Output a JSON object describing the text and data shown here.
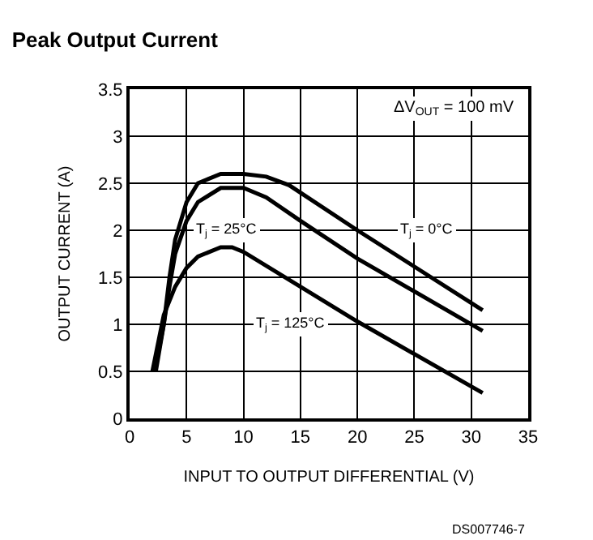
{
  "chart_data": {
    "type": "line",
    "title": "Peak Output Current",
    "xlabel": "INPUT TO OUTPUT DIFFERENTIAL (V)",
    "ylabel": "OUTPUT CURRENT (A)",
    "xlim": [
      0,
      35
    ],
    "ylim": [
      0,
      3.5
    ],
    "xticks": [
      0,
      5,
      10,
      15,
      20,
      25,
      30,
      35
    ],
    "yticks": [
      0,
      0.5,
      1,
      1.5,
      2,
      2.5,
      3,
      3.5
    ],
    "grid": true,
    "legend": false,
    "marker": "none",
    "line_style": "solid",
    "annotations": [
      "ΔV$_{OUT}$ = 100 mV",
      "DS007746-7"
    ],
    "series": [
      {
        "name": "T$_{j}$ = 0°C",
        "color": "#000000",
        "x": [
          2.2,
          3,
          3.5,
          4,
          5,
          6,
          8,
          10,
          12,
          14,
          20,
          31
        ],
        "values": [
          0.5,
          1.0,
          1.5,
          1.9,
          2.3,
          2.5,
          2.6,
          2.6,
          2.57,
          2.48,
          2.0,
          1.15
        ]
      },
      {
        "name": "T$_{j}$ = 25°C",
        "color": "#000000",
        "x": [
          2.3,
          3,
          3.5,
          4,
          5,
          6,
          8,
          10,
          12,
          15,
          20,
          31
        ],
        "values": [
          0.5,
          1.0,
          1.4,
          1.75,
          2.1,
          2.3,
          2.45,
          2.45,
          2.35,
          2.1,
          1.7,
          0.93
        ]
      },
      {
        "name": "T$_{j}$ = 125°C",
        "color": "#000000",
        "x": [
          2,
          3,
          4,
          5,
          6,
          8,
          9,
          10,
          15,
          20,
          31
        ],
        "values": [
          0.5,
          1.1,
          1.4,
          1.6,
          1.72,
          1.82,
          1.82,
          1.77,
          1.4,
          1.03,
          0.27
        ]
      }
    ]
  }
}
